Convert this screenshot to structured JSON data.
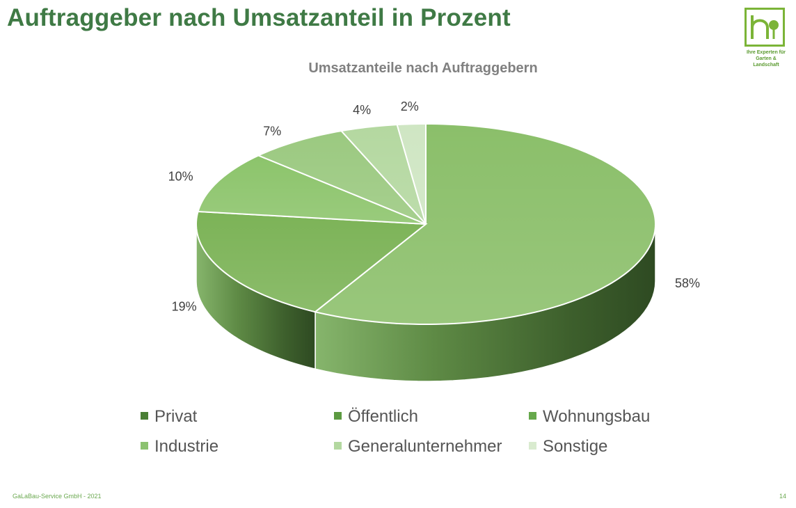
{
  "slide": {
    "title": "Auftraggeber nach Umsatzanteil in Prozent",
    "logo_line1": "Ihre Experten für",
    "logo_line2": "Garten & Landschaft",
    "footer_left": "GaLaBau-Service GmbH  -  2021",
    "page_number": "14"
  },
  "chart_data": {
    "type": "pie",
    "title": "Umsatzanteile nach Auftraggebern",
    "three_d": true,
    "legend_position": "bottom",
    "categories": [
      "Privat",
      "Öffentlich",
      "Wohnungsbau",
      "Industrie",
      "Generalunternehmer",
      "Sonstige"
    ],
    "values": [
      58,
      19,
      10,
      7,
      4,
      2
    ],
    "labels": [
      "58%",
      "19%",
      "10%",
      "7%",
      "4%",
      "2%"
    ],
    "colors": [
      "#8bbf6a",
      "#7cb357",
      "#8cc46b",
      "#9bc980",
      "#b4d8a0",
      "#cfe6c3"
    ],
    "legend_colors": [
      "#4a7f35",
      "#5c9a41",
      "#66a84b",
      "#8cc270",
      "#b3d8a0",
      "#d9ebcf"
    ]
  }
}
